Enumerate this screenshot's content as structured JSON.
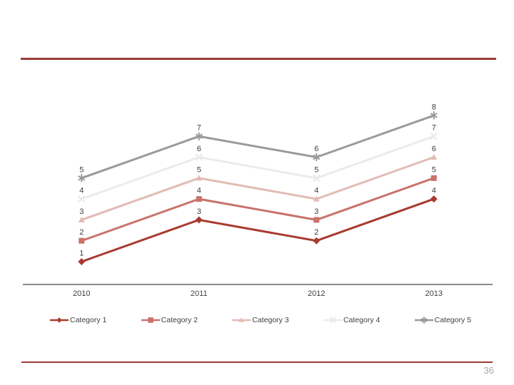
{
  "slide": {
    "page_number": "36",
    "accent_rule_color": "#9e3b36",
    "background": "#ffffff"
  },
  "chart_data": {
    "type": "line",
    "title": "",
    "xlabel": "",
    "ylabel": "",
    "categories": [
      "2010",
      "2011",
      "2012",
      "2013"
    ],
    "series": [
      {
        "name": "Category 1",
        "values": [
          1,
          3,
          2,
          4
        ],
        "color": "#a83b31",
        "marker": "diamond"
      },
      {
        "name": "Category 2",
        "values": [
          2,
          4,
          3,
          5
        ],
        "color": "#c8736c",
        "marker": "square"
      },
      {
        "name": "Category 3",
        "values": [
          3,
          5,
          4,
          6
        ],
        "color": "#e2bbb6",
        "marker": "triangle"
      },
      {
        "name": "Category 4",
        "values": [
          4,
          6,
          5,
          7
        ],
        "color": "#ecebe9",
        "marker": "x"
      },
      {
        "name": "Category 5",
        "values": [
          5,
          7,
          6,
          8
        ],
        "color": "#9c9a99",
        "marker": "asterisk"
      }
    ],
    "data_labels": true,
    "gridlines": false,
    "ylim": [
      0,
      9
    ],
    "legend_position": "bottom",
    "text_color": "#3f3f3f",
    "legend_text_color": "#404040",
    "axis_line_color": "#8c8c8c"
  }
}
